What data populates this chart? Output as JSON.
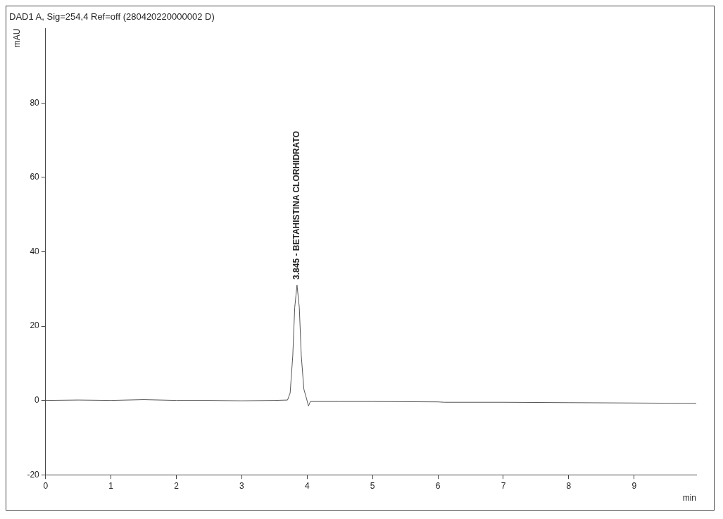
{
  "chart_data": {
    "type": "line",
    "title": "DAD1 A, Sig=254,4 Ref=off (280420220000002 D)",
    "xlabel": "min",
    "ylabel": "mAU",
    "x": [
      0,
      0.5,
      1,
      1.5,
      2,
      2.5,
      3,
      3.5,
      3.7,
      3.74,
      3.78,
      3.81,
      3.845,
      3.88,
      3.91,
      3.95,
      3.99,
      4.02,
      4.05,
      4.5,
      5,
      6,
      6.1,
      7,
      8,
      9,
      9.95
    ],
    "series": [
      {
        "color": "#555555",
        "values": [
          0,
          0.1,
          0,
          0.2,
          0,
          0,
          -0.1,
          0,
          0.1,
          2,
          12,
          25,
          31,
          25,
          12,
          3,
          0.5,
          -1.5,
          -0.3,
          -0.3,
          -0.3,
          -0.4,
          -0.5,
          -0.5,
          -0.6,
          -0.7,
          -0.8
        ]
      }
    ],
    "xlim": [
      0,
      9.95
    ],
    "ylim": [
      -20,
      100
    ],
    "xticks": [
      0,
      1,
      2,
      3,
      4,
      5,
      6,
      7,
      8,
      9
    ],
    "yticks": [
      -20,
      0,
      20,
      40,
      60,
      80
    ],
    "annotations": [
      {
        "text": "3.845 - BETAHISTINA CLORHIDRATO",
        "x": 3.845,
        "y": 31
      }
    ],
    "grid": false,
    "legend": false,
    "marker": "none",
    "line_style": "solid"
  }
}
